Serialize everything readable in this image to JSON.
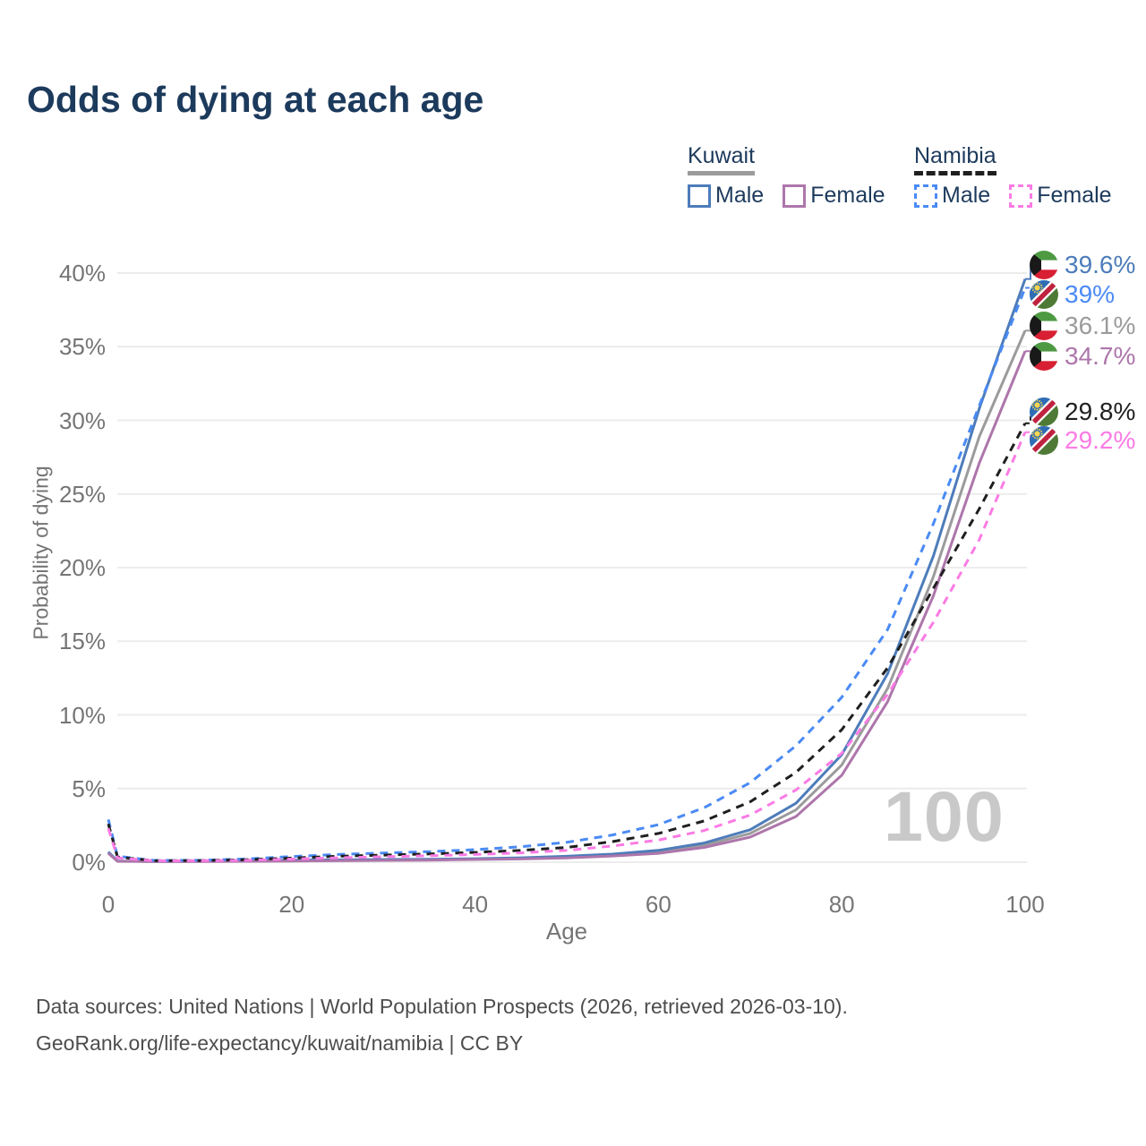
{
  "title": "Odds of dying at each age",
  "legend": {
    "groups": [
      {
        "label": "Kuwait",
        "line_color": "#9b9b9b",
        "dash": false,
        "items": [
          {
            "label": "Male",
            "color": "#4d7cba",
            "dash": false
          },
          {
            "label": "Female",
            "color": "#ad76ab",
            "dash": false
          }
        ]
      },
      {
        "label": "Namibia",
        "line_color": "#1f1f1f",
        "dash": true,
        "items": [
          {
            "label": "Male",
            "color": "#4a8af4",
            "dash": true
          },
          {
            "label": "Female",
            "color": "#fb7be4",
            "dash": true
          }
        ]
      }
    ]
  },
  "chart_data": {
    "type": "line",
    "title": "Odds of dying at each age",
    "xlabel": "Age",
    "ylabel": "Probability of dying",
    "xlim": [
      0,
      100
    ],
    "ylim": [
      0,
      40
    ],
    "x_ticks": [
      0,
      20,
      40,
      60,
      80,
      100
    ],
    "y_ticks": [
      "0%",
      "5%",
      "10%",
      "15%",
      "20%",
      "25%",
      "30%",
      "35%",
      "40%"
    ],
    "grid": true,
    "legend_position": "top-right",
    "watermark": "100",
    "x": [
      0,
      1,
      5,
      10,
      15,
      20,
      25,
      30,
      35,
      40,
      45,
      50,
      55,
      60,
      65,
      70,
      75,
      80,
      85,
      90,
      95,
      100
    ],
    "series": [
      {
        "id": "kuwait-all",
        "name": "Kuwait",
        "country": "Kuwait",
        "sex": "All",
        "color": "#9b9b9b",
        "dash": false,
        "flag": "kuwait-flag-icon",
        "end_label": "36.1%",
        "values": [
          0.65,
          0.07,
          0.05,
          0.06,
          0.08,
          0.11,
          0.13,
          0.15,
          0.17,
          0.21,
          0.26,
          0.35,
          0.48,
          0.7,
          1.15,
          1.95,
          3.55,
          6.6,
          11.8,
          19.4,
          28.9,
          36.1
        ]
      },
      {
        "id": "kuwait-male",
        "name": "Kuwait Male",
        "country": "Kuwait",
        "sex": "Male",
        "color": "#4d7cba",
        "dash": false,
        "flag": "kuwait-flag-icon",
        "end_label": "39.6%",
        "values": [
          0.7,
          0.08,
          0.05,
          0.06,
          0.1,
          0.14,
          0.16,
          0.18,
          0.2,
          0.24,
          0.3,
          0.4,
          0.55,
          0.8,
          1.3,
          2.2,
          4.0,
          7.3,
          12.8,
          20.8,
          30.8,
          39.6
        ]
      },
      {
        "id": "kuwait-female",
        "name": "Kuwait Female",
        "country": "Kuwait",
        "sex": "Female",
        "color": "#ad76ab",
        "dash": false,
        "flag": "kuwait-flag-icon",
        "end_label": "34.7%",
        "values": [
          0.6,
          0.06,
          0.04,
          0.05,
          0.06,
          0.08,
          0.1,
          0.12,
          0.14,
          0.18,
          0.22,
          0.29,
          0.42,
          0.6,
          1.0,
          1.7,
          3.1,
          5.9,
          10.9,
          18.1,
          27.1,
          34.7
        ]
      },
      {
        "id": "namibia-male",
        "name": "Namibia Male",
        "country": "Namibia",
        "sex": "Male",
        "color": "#4a8af4",
        "dash": true,
        "flag": "namibia-flag-icon",
        "end_label": "39%",
        "values": [
          2.9,
          0.4,
          0.12,
          0.13,
          0.22,
          0.38,
          0.52,
          0.62,
          0.72,
          0.85,
          1.05,
          1.35,
          1.85,
          2.55,
          3.7,
          5.4,
          7.9,
          11.2,
          15.8,
          23.0,
          31.0,
          39.0
        ]
      },
      {
        "id": "namibia-all",
        "name": "Namibia",
        "country": "Namibia",
        "sex": "All",
        "color": "#1f1f1f",
        "dash": true,
        "flag": "namibia-flag-icon",
        "end_label": "29.8%",
        "values": [
          2.6,
          0.35,
          0.1,
          0.11,
          0.17,
          0.28,
          0.4,
          0.48,
          0.56,
          0.66,
          0.8,
          1.0,
          1.4,
          1.95,
          2.8,
          4.1,
          6.1,
          9.0,
          13.2,
          18.6,
          24.0,
          29.8
        ]
      },
      {
        "id": "namibia-female",
        "name": "Namibia Female",
        "country": "Namibia",
        "sex": "Female",
        "color": "#fb7be4",
        "dash": true,
        "flag": "namibia-flag-icon",
        "end_label": "29.2%",
        "values": [
          2.3,
          0.3,
          0.09,
          0.1,
          0.13,
          0.21,
          0.3,
          0.37,
          0.44,
          0.52,
          0.63,
          0.8,
          1.1,
          1.5,
          2.15,
          3.2,
          4.9,
          7.4,
          11.4,
          16.3,
          21.9,
          29.2
        ]
      }
    ]
  },
  "footer": {
    "line1": "Data sources: United Nations | World Population Prospects (2026, retrieved 2026-03-10).",
    "line2": "GeoRank.org/life-expectancy/kuwait/namibia | CC BY"
  }
}
